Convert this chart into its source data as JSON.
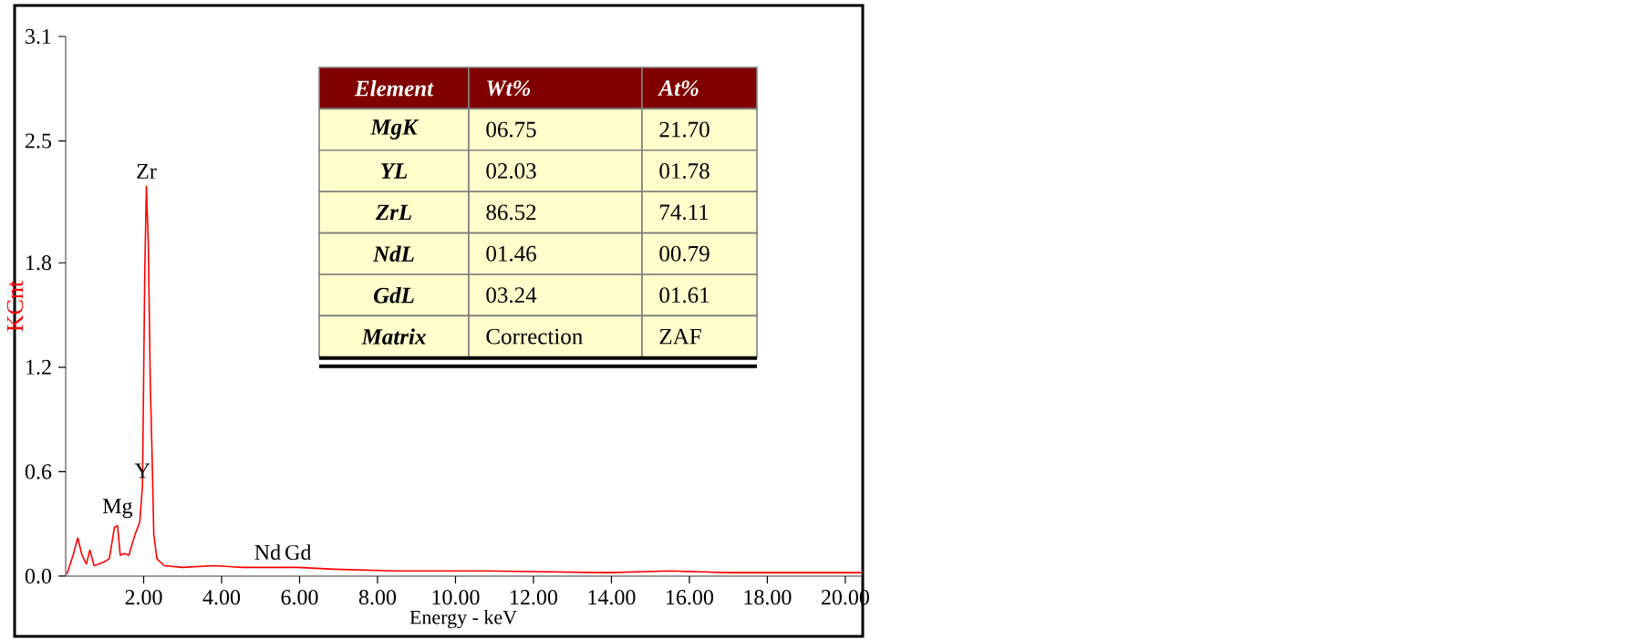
{
  "chart_data": {
    "type": "line",
    "xlabel": "Energy - keV",
    "ylabel": "KCnt",
    "color": "#ff0000",
    "grid": false,
    "marker": "none",
    "line_style": "solid",
    "xlim": [
      0,
      20.4
    ],
    "ylim": [
      0,
      3.1
    ],
    "xticks": [
      {
        "value": 2,
        "label": "2.00"
      },
      {
        "value": 4,
        "label": "4.00"
      },
      {
        "value": 6,
        "label": "6.00"
      },
      {
        "value": 8,
        "label": "8.00"
      },
      {
        "value": 10,
        "label": "10.00"
      },
      {
        "value": 12,
        "label": "12.00"
      },
      {
        "value": 14,
        "label": "14.00"
      },
      {
        "value": 16,
        "label": "16.00"
      },
      {
        "value": 18,
        "label": "18.00"
      },
      {
        "value": 20,
        "label": "20.00"
      }
    ],
    "yticks": [
      {
        "value": 0,
        "label": "0.0"
      },
      0.6,
      1.2,
      1.8,
      2.5,
      3.1
    ],
    "x": [
      0.03,
      0.19,
      0.31,
      0.42,
      0.53,
      0.62,
      0.73,
      0.97,
      1.12,
      1.25,
      1.33,
      1.4,
      1.51,
      1.62,
      1.78,
      1.9,
      1.97,
      2.03,
      2.07,
      2.12,
      2.17,
      2.22,
      2.26,
      2.34,
      2.53,
      3.0,
      3.78,
      4.56,
      5.18,
      5.96,
      6.9,
      8.46,
      10.8,
      13.9,
      15.5,
      17.0,
      18.6,
      20.4
    ],
    "values": [
      0.01,
      0.12,
      0.22,
      0.12,
      0.07,
      0.15,
      0.06,
      0.08,
      0.1,
      0.28,
      0.29,
      0.12,
      0.13,
      0.12,
      0.24,
      0.31,
      0.52,
      1.77,
      2.24,
      1.9,
      1.11,
      0.66,
      0.24,
      0.1,
      0.06,
      0.05,
      0.06,
      0.05,
      0.05,
      0.05,
      0.04,
      0.03,
      0.03,
      0.02,
      0.03,
      0.02,
      0.02,
      0.02
    ],
    "annotations": [
      "Element",
      "Wt%",
      "At%",
      "MgK",
      "06.75",
      "21.70",
      "YL",
      "02.03",
      "01.78",
      "ZrL",
      "86.52",
      "74.11",
      "NdL",
      "01.46",
      "00.79",
      "GdL",
      "03.24",
      "01.61",
      "Matrix",
      "Correction",
      "ZAF",
      {
        "text": "Zr",
        "x": 2.07,
        "y": 2.24
      },
      {
        "text": "Mg",
        "x": 1.33,
        "y": 0.29
      },
      {
        "text": "Y",
        "x": 1.97,
        "y": 0.52
      },
      {
        "text": "Nd",
        "x": 5.18,
        "y": 0.05
      },
      {
        "text": "Gd",
        "x": 5.96,
        "y": 0.05
      }
    ]
  }
}
